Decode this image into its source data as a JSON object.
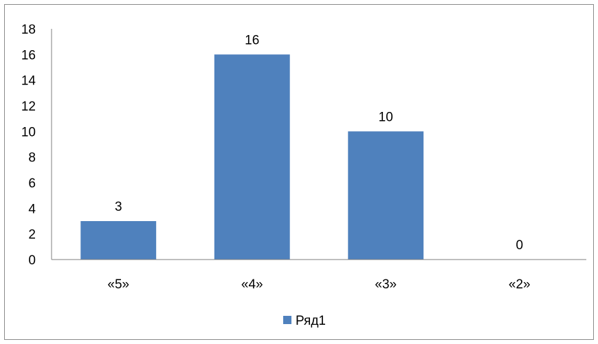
{
  "chart_data": {
    "type": "bar",
    "categories": [
      "«5»",
      "«4»",
      "«3»",
      "«2»"
    ],
    "series": [
      {
        "name": "Ряд1",
        "values": [
          3,
          16,
          10,
          0
        ]
      }
    ],
    "data_labels": [
      "3",
      "16",
      "10",
      "0"
    ],
    "ylim": [
      0,
      18
    ],
    "yticks": [
      0,
      2,
      4,
      6,
      8,
      10,
      12,
      14,
      16,
      18
    ],
    "grid": false,
    "legend": {
      "position": "bottom",
      "labels": [
        "Ряд1"
      ]
    },
    "title": "",
    "xlabel": "",
    "ylabel": "",
    "colors": {
      "bar": "#4f81bd",
      "axis": "#7f7f7f",
      "frame": "#8a8a8a"
    }
  }
}
